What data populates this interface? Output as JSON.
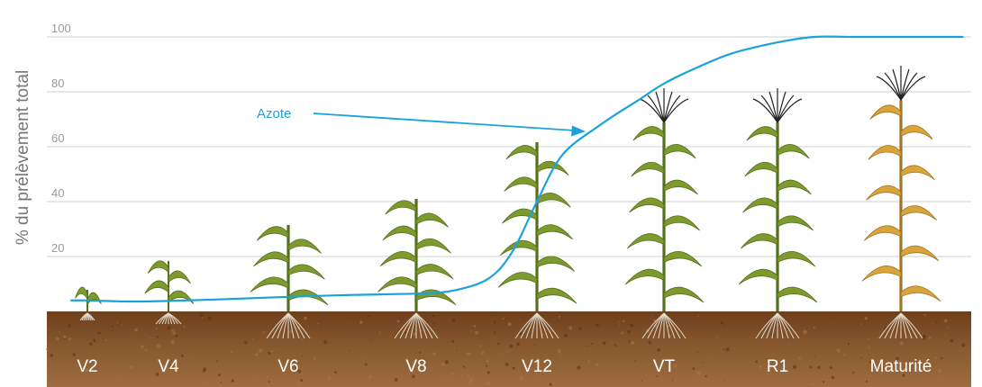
{
  "chart_data": {
    "type": "line",
    "ylabel": "% du prélèvement total",
    "ylim": [
      0,
      100
    ],
    "yticks": [
      20,
      40,
      60,
      80,
      100
    ],
    "grid": true,
    "categories": [
      "V2",
      "V4",
      "V6",
      "V8",
      "V12",
      "VT",
      "R1",
      "Maturité"
    ],
    "series": [
      {
        "name": "Azote",
        "color": "#1aa3d9",
        "x": [
          -0.2,
          0,
          0.5,
          1,
          1.5,
          2,
          2.5,
          3,
          3.3,
          3.6,
          3.8,
          4,
          4.2,
          4.5,
          4.8,
          5,
          5.3,
          5.6,
          6,
          6.3,
          6.6,
          7,
          7.5
        ],
        "values": [
          4,
          4,
          3.6,
          3.8,
          4.5,
          5.3,
          6,
          6.5,
          7.5,
          12,
          22,
          40,
          57,
          68,
          77,
          83,
          89,
          94,
          98,
          100,
          100,
          100,
          100
        ]
      }
    ],
    "annotations": [
      {
        "text": "Azote",
        "color": "#1aa3d9"
      }
    ],
    "soil_color": "#7b4a22",
    "leaf_color": "#7d9a2e",
    "mature_color": "#d9a43a"
  }
}
